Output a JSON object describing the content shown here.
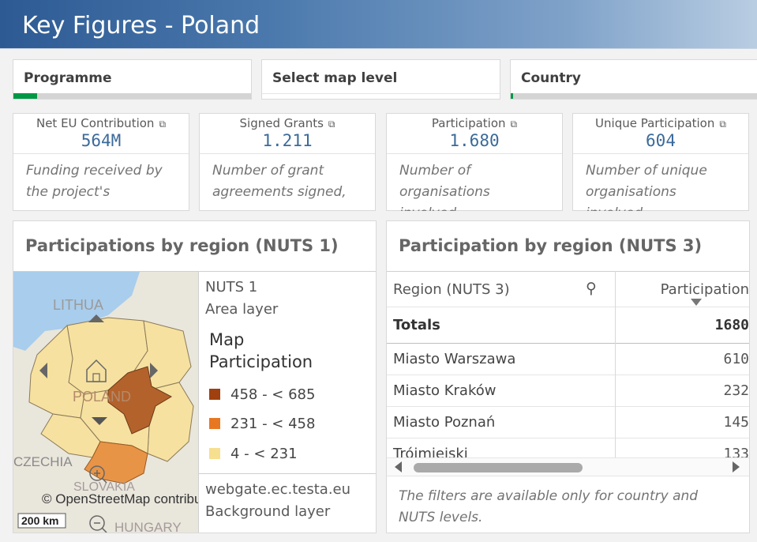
{
  "header": {
    "title": "Key Figures - Poland"
  },
  "filters": [
    {
      "label": "Programme",
      "fill_fraction": 0.1,
      "fill_color": "#009845"
    },
    {
      "label": "Select map level",
      "fill_fraction": 0,
      "fill_color": "#009845"
    },
    {
      "label": "Country",
      "fill_fraction": 0.01,
      "fill_color": "#009845"
    }
  ],
  "kpis": [
    {
      "label": "Net EU Contribution",
      "value": "564M",
      "description": "Funding received by the project's",
      "icon": "external-link-icon"
    },
    {
      "label": "Signed Grants",
      "value": "1.211",
      "description": "Number of grant agreements signed,",
      "icon": "external-link-icon"
    },
    {
      "label": "Participation",
      "value": "1.680",
      "description": "Number of organisations involved",
      "icon": "external-link-icon"
    },
    {
      "label": "Unique Participation",
      "value": "604",
      "description": "Number of unique organisations involved",
      "icon": "external-link-icon"
    }
  ],
  "map_panel": {
    "title": "Participations by region (NUTS 1)",
    "map_labels": {
      "lithuania": "LITHUA",
      "poland": "POLAND",
      "czechia": "CZECHIA",
      "slovakia": "SLOVAKIA",
      "hungary": "HUNGARY"
    },
    "attribution": "© OpenStreetMap contributors",
    "scale": "200 km",
    "legend": {
      "layer_name": "NUTS 1",
      "layer_type": "Area layer",
      "heading_line1": "Map",
      "heading_line2": "Participation",
      "items": [
        {
          "label": "458 - < 685",
          "color": "#a0400f"
        },
        {
          "label": "231 - < 458",
          "color": "#e87722"
        },
        {
          "label": "4 - < 231",
          "color": "#f6df8f"
        }
      ],
      "bg_layer_name": "webgate.ec.testa.eu",
      "bg_layer_type": "Background layer"
    },
    "region_colors": {
      "high": "#b4622b",
      "mid": "#e89447",
      "low": "#f6e1a0",
      "sea": "#a9cdec",
      "land": "#e9e6dc"
    }
  },
  "table_panel": {
    "title": "Participation by region (NUTS 3)",
    "col1_header": "Region (NUTS 3)",
    "col2_header": "Participation",
    "totals_label": "Totals",
    "totals_value": "1680",
    "rows": [
      {
        "region": "Miasto Warszawa",
        "value": "610"
      },
      {
        "region": "Miasto Kraków",
        "value": "232"
      },
      {
        "region": "Miasto Poznań",
        "value": "145"
      },
      {
        "region": "Trójmiejski",
        "value": "133"
      }
    ],
    "note": "The filters are available only for country and NUTS levels."
  }
}
